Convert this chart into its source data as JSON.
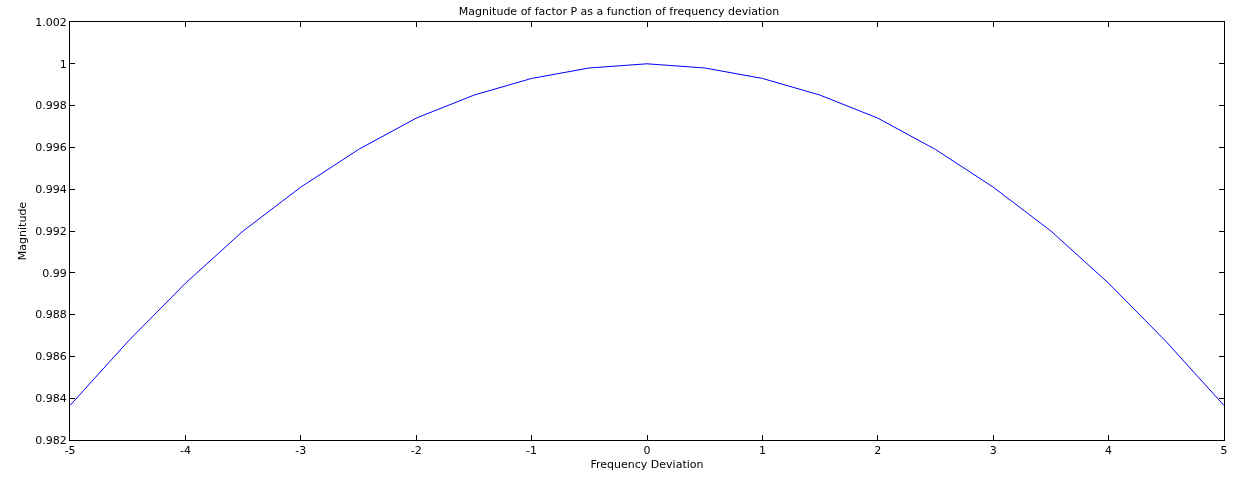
{
  "chart_data": {
    "type": "line",
    "title": "Magnitude of factor P as a function of frequency deviation",
    "xlabel": "Frequency Deviation",
    "ylabel": "Magnitude",
    "x": [
      -5,
      -4.5,
      -4,
      -3.5,
      -3,
      -2.5,
      -2,
      -1.5,
      -1,
      -0.5,
      0,
      0.5,
      1,
      1.5,
      2,
      2.5,
      3,
      3.5,
      4,
      4.5,
      5
    ],
    "series": [
      {
        "color": "#0000ff",
        "values": [
          0.98365,
          0.9867,
          0.9895,
          0.992,
          0.9941,
          0.9959,
          0.9974,
          0.9985,
          0.9993,
          0.9998,
          1.0,
          0.9998,
          0.9993,
          0.9985,
          0.9974,
          0.9959,
          0.9941,
          0.992,
          0.9895,
          0.9867,
          0.98365
        ]
      }
    ],
    "xlim": [
      -5,
      5
    ],
    "xticks": [
      -5,
      -4,
      -3,
      -2,
      -1,
      0,
      1,
      2,
      3,
      4,
      5
    ],
    "ylim": [
      0.982,
      1.002
    ],
    "yticks": [
      0.982,
      0.984,
      0.986,
      0.988,
      0.99,
      0.992,
      0.994,
      0.996,
      0.998,
      {
        "value": 1,
        "label": "1"
      },
      1.002
    ],
    "legend": false,
    "marker": "none",
    "line_style": "solid"
  }
}
